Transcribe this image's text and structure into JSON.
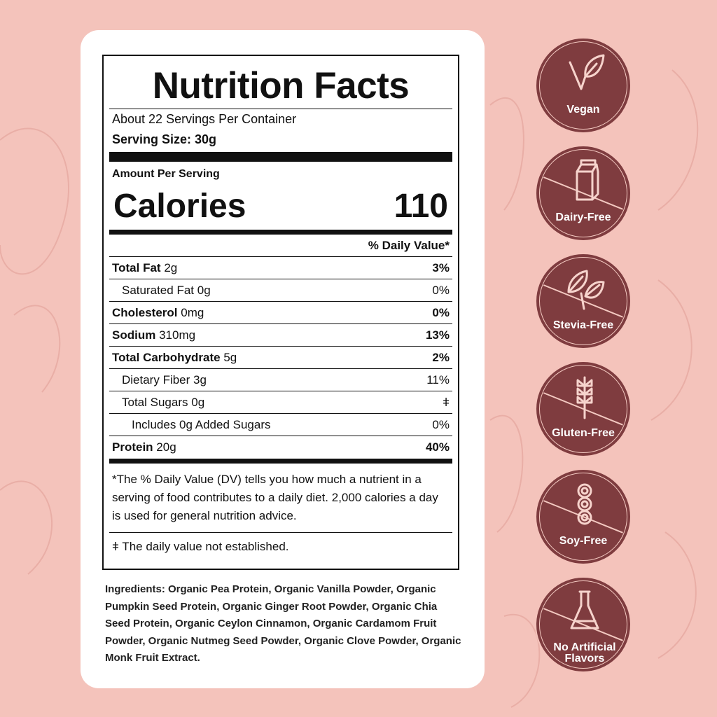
{
  "label": {
    "title": "Nutrition Facts",
    "servings": "About 22 Servings Per Container",
    "serving_size": "Serving Size: 30g",
    "amount_per_serving": "Amount Per Serving",
    "calories_label": "Calories",
    "calories_value": "110",
    "dv_header": "% Daily Value*",
    "rows": [
      {
        "name": "Total Fat",
        "amount": "2g",
        "dv": "3%",
        "bold": true
      },
      {
        "name": "Saturated Fat",
        "amount": "0g",
        "dv": "0%",
        "indent": 1
      },
      {
        "name": "Cholesterol",
        "amount": "0mg",
        "dv": "0%",
        "bold": true
      },
      {
        "name": "Sodium",
        "amount": "310mg",
        "dv": "13%",
        "bold": true
      },
      {
        "name": "Total Carbohydrate",
        "amount": "5g",
        "dv": "2%",
        "bold": true
      },
      {
        "name": "Dietary Fiber",
        "amount": "3g",
        "dv": "11%",
        "indent": 1
      },
      {
        "name": "Total Sugars",
        "amount": "0g",
        "dv": "ǂ",
        "indent": 1
      },
      {
        "name": "Includes 0g Added Sugars",
        "amount": "",
        "dv": "0%",
        "indent": 2
      },
      {
        "name": "Protein",
        "amount": "20g",
        "dv": "40%",
        "bold": true
      }
    ],
    "footnote": "*The % Daily Value (DV) tells you how much a nutrient in a serving of food contributes to a daily diet. 2,000 calories a day is used for general nutrition advice.",
    "dagger_note": "ǂ The daily value not established."
  },
  "ingredients": "Ingredients: Organic Pea Protein, Organic Vanilla Powder, Organic Pumpkin Seed Protein, Organic Ginger Root Powder, Organic Chia Seed Protein, Organic Ceylon Cinnamon, Organic Cardamom Fruit Powder, Organic Nutmeg Seed Powder, Organic Clove Powder, Organic Monk Fruit Extract.",
  "badges": [
    {
      "label": "Vegan",
      "icon": "leaf-v-icon"
    },
    {
      "label": "Dairy-Free",
      "icon": "milk-carton-icon"
    },
    {
      "label": "Stevia-Free",
      "icon": "stevia-leaves-icon"
    },
    {
      "label": "Gluten-Free",
      "icon": "wheat-icon"
    },
    {
      "label": "Soy-Free",
      "icon": "soybean-icon"
    },
    {
      "label": "No Artificial Flavors",
      "icon": "flask-icon"
    }
  ],
  "colors": {
    "background": "#f4c3bb",
    "badge": "#7f3c3f",
    "card": "#ffffff"
  }
}
